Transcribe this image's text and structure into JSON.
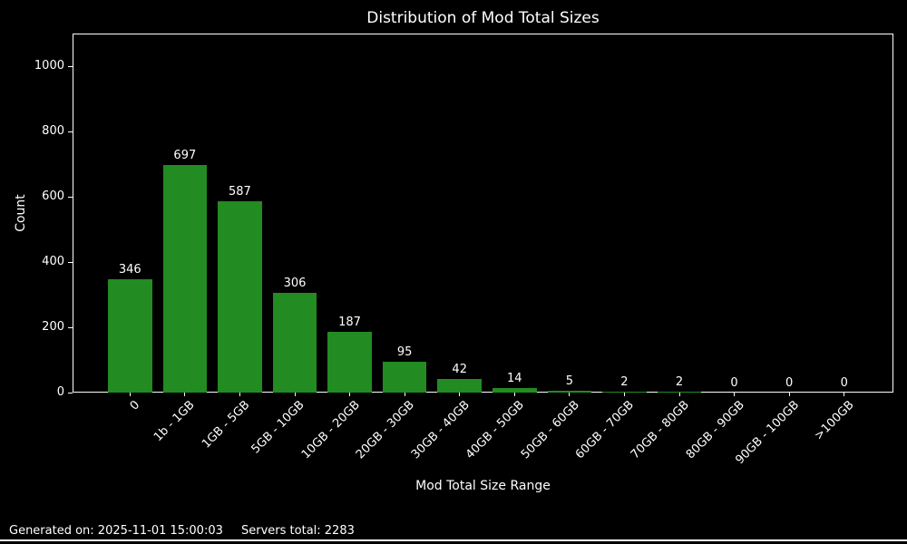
{
  "title": "Distribution of Mod Total Sizes",
  "footer": {
    "generated": "Generated on: 2025-11-01 15:00:03",
    "servers_total": "Servers total: 2283"
  },
  "chart_data": {
    "type": "bar",
    "title": "Distribution of Mod Total Sizes",
    "categories": [
      "0",
      "1b - 1GB",
      "1GB - 5GB",
      "5GB - 10GB",
      "10GB - 20GB",
      "20GB - 30GB",
      "30GB - 40GB",
      "40GB - 50GB",
      "50GB - 60GB",
      "60GB - 70GB",
      "70GB - 80GB",
      "80GB - 90GB",
      "90GB - 100GB",
      ">100GB"
    ],
    "values": [
      346,
      697,
      587,
      306,
      187,
      95,
      42,
      14,
      5,
      2,
      2,
      0,
      0,
      0
    ],
    "xlabel": "Mod Total Size Range",
    "ylabel": "Count",
    "ylim": [
      0,
      1100
    ],
    "yticks": [
      0,
      200,
      400,
      600,
      800,
      1000
    ],
    "bar_labels_shown": true,
    "grid": false,
    "legend": "none",
    "bar_color": "#228B22",
    "background_color": "#000000",
    "text_color": "#ffffff"
  }
}
